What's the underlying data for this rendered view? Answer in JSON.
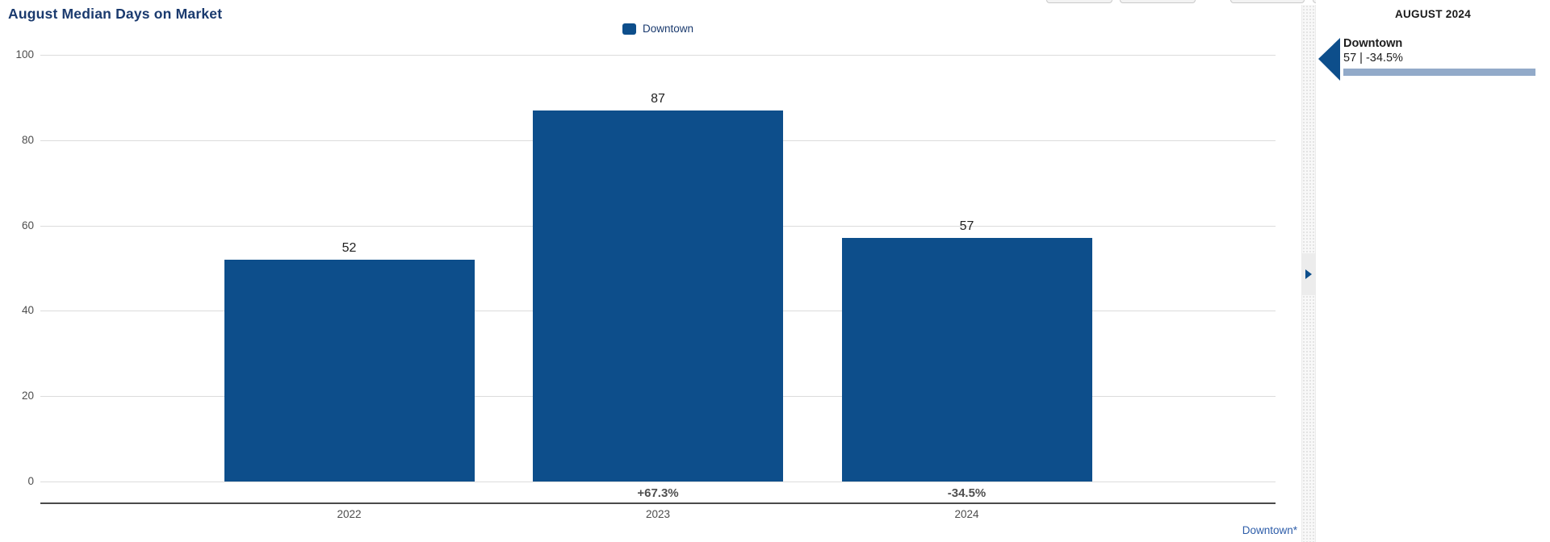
{
  "title": "August Median Days on Market",
  "colors": {
    "bar": "#0d4e8b",
    "title_text": "#1a3a6e",
    "footnote_link": "#2d5da9",
    "panel_value_bar": "#92aac9"
  },
  "legend": {
    "position": "top-center",
    "items": [
      {
        "label": "Downtown",
        "color": "#0d4e8b"
      }
    ]
  },
  "chart_data": {
    "type": "bar",
    "title": "August Median Days on Market",
    "categories": [
      "2022",
      "2023",
      "2024"
    ],
    "series": [
      {
        "name": "Downtown",
        "values": [
          52,
          87,
          57
        ]
      }
    ],
    "value_labels": [
      "52",
      "87",
      "57"
    ],
    "pct_change_labels": [
      "",
      "+67.3%",
      "-34.5%"
    ],
    "yticks": [
      0,
      20,
      40,
      60,
      80,
      100
    ],
    "ylim": [
      0,
      100
    ],
    "grid": true,
    "legend_position": "top-center"
  },
  "footnote": "Downtown*",
  "icons": {
    "panel_marker": "left-triangle",
    "divider_expander": "right-triangle"
  },
  "side_panel": {
    "header": "AUGUST 2024",
    "items": [
      {
        "name": "Downtown",
        "value_text": "57 | -34.5%",
        "value": 57,
        "change_pct": -34.5
      }
    ]
  }
}
